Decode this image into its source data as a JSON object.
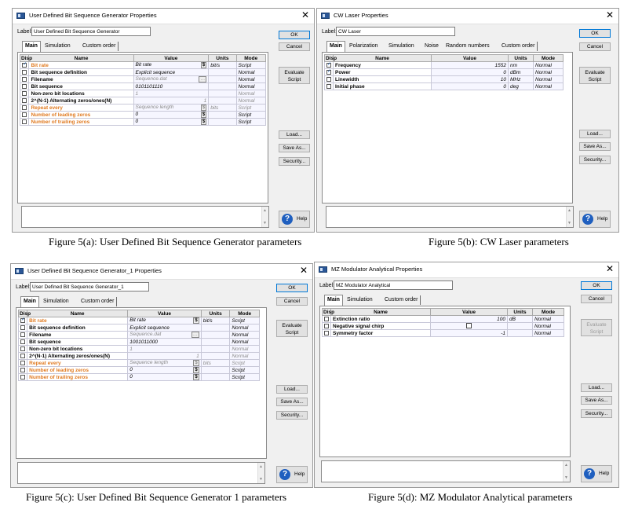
{
  "captions": {
    "a": "Figure 5(a): User Defined Bit Sequence Generator parameters",
    "b": "Figure 5(b): CW Laser parameters",
    "c": "Figure 5(c): User Defined Bit Sequence Generator 1 parameters",
    "d": "Figure 5(d): MZ Modulator Analytical parameters"
  },
  "common": {
    "label_prefix": "Label:",
    "col_disp": "Disp",
    "col_name": "Name",
    "col_value": "Value",
    "col_units": "Units",
    "col_mode": "Mode",
    "ok": "OK",
    "cancel": "Cancel",
    "evaluate": "Evaluate Script",
    "load": "Load...",
    "save_as": "Save As...",
    "security": "Security...",
    "help": "Help"
  },
  "dialog_a": {
    "title": "User Defined Bit Sequence Generator Properties",
    "label_value": "User Defined Bit Sequence Generator",
    "tabs": [
      "Main",
      "Simulation",
      "Custom order"
    ],
    "rows": [
      {
        "name": "Bit rate",
        "value": "Bit rate",
        "units": "bit/s",
        "mode": "Script"
      },
      {
        "name": "Bit sequence definition",
        "value": "Explicit sequence",
        "units": "",
        "mode": "Normal"
      },
      {
        "name": "Filename",
        "value": "Sequence.dat",
        "units": "",
        "mode": "Normal"
      },
      {
        "name": "Bit sequence",
        "value": "0101101110",
        "units": "",
        "mode": "Normal"
      },
      {
        "name": "Non-zero bit locations",
        "value": "1",
        "units": "",
        "mode": "Normal"
      },
      {
        "name": "2^(N-1) Alternating zeros/ones(N)",
        "value": "1",
        "units": "",
        "mode": "Normal"
      },
      {
        "name": "Repeat every",
        "value": "Sequence length",
        "units": "bits",
        "mode": "Script"
      },
      {
        "name": "Number of leading zeros",
        "value": "0",
        "units": "",
        "mode": "Script"
      },
      {
        "name": "Number of trailing zeros",
        "value": "0",
        "units": "",
        "mode": "Script"
      }
    ]
  },
  "dialog_b": {
    "title": "CW Laser Properties",
    "label_value": "CW Laser",
    "tabs": [
      "Main",
      "Polarization",
      "Simulation",
      "Noise",
      "Random numbers",
      "Custom order"
    ],
    "rows": [
      {
        "name": "Frequency",
        "value": "1552",
        "units": "nm",
        "mode": "Normal"
      },
      {
        "name": "Power",
        "value": "0",
        "units": "dBm",
        "mode": "Normal"
      },
      {
        "name": "Linewidth",
        "value": "10",
        "units": "MHz",
        "mode": "Normal"
      },
      {
        "name": "Initial phase",
        "value": "0",
        "units": "deg",
        "mode": "Normal"
      }
    ]
  },
  "dialog_c": {
    "title": "User Defined Bit Sequence Generator_1 Properties",
    "label_value": "User Defined Bit Sequence Generator_1",
    "tabs": [
      "Main",
      "Simulation",
      "Custom order"
    ],
    "rows": [
      {
        "name": "Bit rate",
        "value": "Bit rate",
        "units": "bit/s",
        "mode": "Script"
      },
      {
        "name": "Bit sequence definition",
        "value": "Explicit sequence",
        "units": "",
        "mode": "Normal"
      },
      {
        "name": "Filename",
        "value": "Sequence.dat",
        "units": "",
        "mode": "Normal"
      },
      {
        "name": "Bit sequence",
        "value": "1001011000",
        "units": "",
        "mode": "Normal"
      },
      {
        "name": "Non-zero bit locations",
        "value": "1",
        "units": "",
        "mode": "Normal"
      },
      {
        "name": "2^(N-1) Alternating zeros/ones(N)",
        "value": "1",
        "units": "",
        "mode": "Normal"
      },
      {
        "name": "Repeat every",
        "value": "Sequence length",
        "units": "bits",
        "mode": "Script"
      },
      {
        "name": "Number of leading zeros",
        "value": "0",
        "units": "",
        "mode": "Script"
      },
      {
        "name": "Number of trailing zeros",
        "value": "0",
        "units": "",
        "mode": "Script"
      }
    ]
  },
  "dialog_d": {
    "title": "MZ Modulator Analytical Properties",
    "label_value": "MZ Modulator Analytical",
    "tabs": [
      "Main",
      "Simulation",
      "Custom order"
    ],
    "rows": [
      {
        "name": "Extinction ratio",
        "value": "100",
        "units": "dB",
        "mode": "Normal"
      },
      {
        "name": "Negative signal chirp",
        "value": "",
        "units": "",
        "mode": "Normal"
      },
      {
        "name": "Symmetry factor",
        "value": "-1",
        "units": "",
        "mode": "Normal"
      }
    ]
  }
}
